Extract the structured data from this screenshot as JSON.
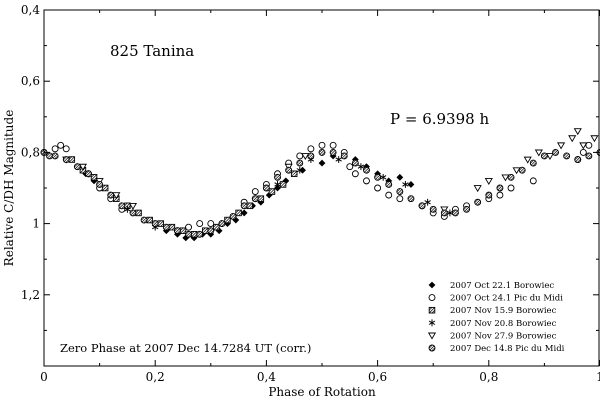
{
  "chart_data": {
    "type": "scatter",
    "title": "825 Tanina",
    "annotation_period": "P = 6.9398 h",
    "annotation_zero_phase": "Zero Phase at 2007 Dec 14.7284 UT (corr.)",
    "xlabel": "Phase of Rotation",
    "ylabel": "Relative C/DH Magnitude",
    "xlim": [
      0,
      1
    ],
    "ylim": [
      0.4,
      1.4
    ],
    "y_inverted": true,
    "x_ticks": [
      {
        "value": 0,
        "label": "0"
      },
      {
        "value": 0.2,
        "label": "0,2"
      },
      {
        "value": 0.4,
        "label": "0,4"
      },
      {
        "value": 0.6,
        "label": "0,6"
      },
      {
        "value": 0.8,
        "label": "0,8"
      },
      {
        "value": 1.0,
        "label": "1"
      }
    ],
    "y_ticks": [
      {
        "value": 0.4,
        "label": "0,4"
      },
      {
        "value": 0.6,
        "label": "0,6"
      },
      {
        "value": 0.8,
        "label": "0,8"
      },
      {
        "value": 1.0,
        "label": "1"
      },
      {
        "value": 1.2,
        "label": "1,2"
      }
    ],
    "legend_position": "bottom-right",
    "series": [
      {
        "name": "2007 Oct 22.1 Borowiec",
        "marker": "diamond-filled",
        "x": [
          0.06,
          0.075,
          0.09,
          0.105,
          0.12,
          0.14,
          0.16,
          0.18,
          0.2,
          0.22,
          0.24,
          0.255,
          0.27,
          0.285,
          0.3,
          0.315,
          0.33,
          0.345,
          0.36,
          0.375,
          0.39,
          0.405,
          0.42,
          0.435,
          0.45,
          0.465,
          0.5,
          0.52,
          0.54,
          0.56,
          0.58,
          0.6,
          0.62,
          0.64,
          0.66
        ],
        "y": [
          0.84,
          0.86,
          0.88,
          0.9,
          0.92,
          0.95,
          0.97,
          0.99,
          1.0,
          1.02,
          1.03,
          1.04,
          1.04,
          1.03,
          1.03,
          1.02,
          1.0,
          0.99,
          0.97,
          0.95,
          0.94,
          0.92,
          0.9,
          0.88,
          0.86,
          0.85,
          0.83,
          0.81,
          0.8,
          0.82,
          0.84,
          0.86,
          0.88,
          0.87,
          0.89
        ]
      },
      {
        "name": "2007 Oct 24.1 Pic du Midi",
        "marker": "circle-open",
        "x": [
          0.0,
          0.02,
          0.03,
          0.04,
          0.08,
          0.1,
          0.12,
          0.14,
          0.24,
          0.26,
          0.28,
          0.3,
          0.36,
          0.38,
          0.4,
          0.42,
          0.44,
          0.46,
          0.48,
          0.5,
          0.52,
          0.54,
          0.55,
          0.56,
          0.58,
          0.6,
          0.62,
          0.64,
          0.68,
          0.7,
          0.72,
          0.74,
          0.76,
          0.8,
          0.82,
          0.84,
          0.88,
          0.96,
          0.97,
          0.98,
          1.0
        ],
        "y": [
          0.8,
          0.79,
          0.78,
          0.79,
          0.86,
          0.9,
          0.93,
          0.96,
          1.02,
          1.01,
          1.0,
          1.0,
          0.94,
          0.91,
          0.89,
          0.86,
          0.83,
          0.81,
          0.79,
          0.78,
          0.78,
          0.8,
          0.84,
          0.86,
          0.88,
          0.9,
          0.92,
          0.93,
          0.95,
          0.97,
          0.98,
          0.96,
          0.95,
          0.93,
          0.92,
          0.9,
          0.88,
          0.82,
          0.8,
          0.78,
          0.8
        ]
      },
      {
        "name": "2007 Nov 15.9 Borowiec",
        "marker": "square-hatched",
        "x": [
          0.05,
          0.07,
          0.09,
          0.11,
          0.13,
          0.15,
          0.17,
          0.19,
          0.21,
          0.23,
          0.25,
          0.27,
          0.29,
          0.31,
          0.33,
          0.35,
          0.37,
          0.39,
          0.41,
          0.43,
          0.45
        ],
        "y": [
          0.82,
          0.85,
          0.87,
          0.9,
          0.93,
          0.95,
          0.97,
          0.99,
          1.0,
          1.01,
          1.02,
          1.03,
          1.02,
          1.01,
          0.99,
          0.97,
          0.95,
          0.93,
          0.91,
          0.89,
          0.86
        ]
      },
      {
        "name": "2007 Nov 20.8 Borowiec",
        "marker": "asterisk",
        "x": [
          0.15,
          0.2,
          0.26,
          0.32,
          0.38,
          0.42,
          0.46,
          0.48,
          0.53,
          0.57,
          0.61,
          0.65,
          0.69,
          0.73
        ],
        "y": [
          0.96,
          1.01,
          1.03,
          1.0,
          0.93,
          0.89,
          0.85,
          0.82,
          0.82,
          0.84,
          0.87,
          0.89,
          0.94,
          0.97
        ]
      },
      {
        "name": "2007 Nov 27.9 Borowiec",
        "marker": "triangle-down-open",
        "x": [
          0.04,
          0.07,
          0.1,
          0.13,
          0.16,
          0.44,
          0.47,
          0.72,
          0.78,
          0.8,
          0.83,
          0.85,
          0.87,
          0.89,
          0.91,
          0.93,
          0.95,
          0.96,
          0.97,
          0.99
        ],
        "y": [
          0.82,
          0.84,
          0.88,
          0.92,
          0.95,
          0.84,
          0.81,
          0.96,
          0.9,
          0.88,
          0.87,
          0.85,
          0.82,
          0.8,
          0.81,
          0.78,
          0.76,
          0.74,
          0.78,
          0.76
        ]
      },
      {
        "name": "2007 Dec 14.8 Pic du Midi",
        "marker": "circle-hatched",
        "x": [
          0.0,
          0.01,
          0.02,
          0.04,
          0.06,
          0.08,
          0.1,
          0.12,
          0.14,
          0.16,
          0.18,
          0.2,
          0.22,
          0.24,
          0.26,
          0.28,
          0.3,
          0.32,
          0.34,
          0.36,
          0.38,
          0.4,
          0.42,
          0.44,
          0.46,
          0.48,
          0.5,
          0.52,
          0.54,
          0.56,
          0.58,
          0.6,
          0.62,
          0.64,
          0.66,
          0.68,
          0.7,
          0.72,
          0.74,
          0.76,
          0.78,
          0.8,
          0.82,
          0.84,
          0.86,
          0.88,
          0.9,
          0.92,
          0.94,
          0.96,
          0.98,
          1.0
        ],
        "y": [
          0.8,
          0.81,
          0.81,
          0.82,
          0.84,
          0.86,
          0.89,
          0.92,
          0.95,
          0.97,
          0.99,
          1.0,
          1.01,
          1.02,
          1.03,
          1.03,
          1.02,
          1.0,
          0.98,
          0.95,
          0.93,
          0.9,
          0.87,
          0.85,
          0.83,
          0.81,
          0.8,
          0.8,
          0.81,
          0.83,
          0.85,
          0.87,
          0.89,
          0.91,
          0.93,
          0.95,
          0.96,
          0.97,
          0.97,
          0.96,
          0.94,
          0.92,
          0.9,
          0.87,
          0.85,
          0.83,
          0.81,
          0.8,
          0.81,
          0.82,
          0.81,
          0.8
        ]
      }
    ]
  }
}
